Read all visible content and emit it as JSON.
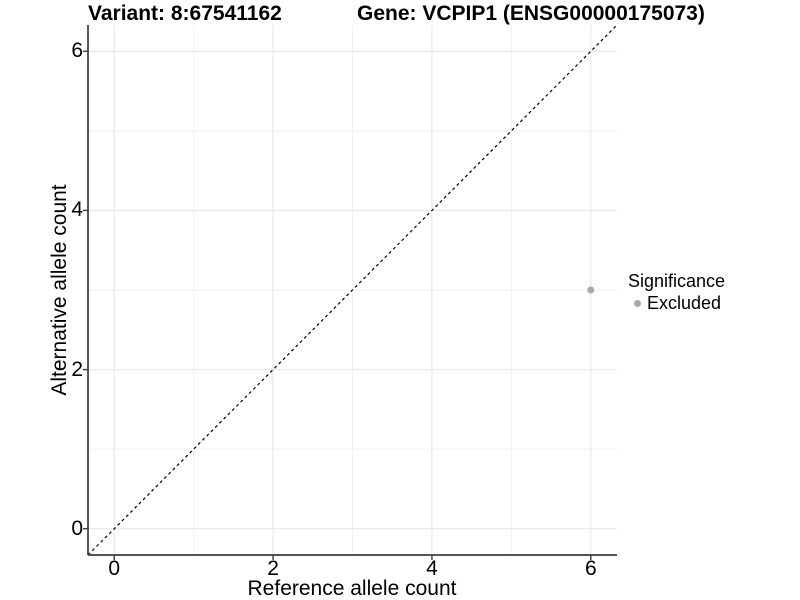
{
  "figure": {
    "background": "#ffffff"
  },
  "chart_data": {
    "type": "scatter",
    "title_left": "Variant: 8:67541162",
    "title_right": "Gene: VCPIP1 (ENSG00000175073)",
    "xlabel": "Reference allele count",
    "ylabel": "Alternative allele count",
    "xlim": [
      -0.33,
      6.33
    ],
    "ylim": [
      -0.33,
      6.33
    ],
    "x_ticks": [
      0,
      2,
      4,
      6
    ],
    "y_ticks": [
      0,
      2,
      4,
      6
    ],
    "x_minor_ticks": [
      1,
      3,
      5
    ],
    "y_minor_ticks": [
      1,
      3,
      5
    ],
    "grid": true,
    "legend": {
      "title": "Significance",
      "position": "right",
      "items": [
        {
          "label": "Excluded",
          "color": "#a8a8a8",
          "marker": "circle"
        }
      ]
    },
    "reference_line": {
      "type": "identity y=x",
      "style": "dashed",
      "color": "#000000"
    },
    "series": [
      {
        "name": "Excluded",
        "color": "#a8a8a8",
        "marker": "circle",
        "points": [
          {
            "x": 6,
            "y": 3
          }
        ]
      }
    ]
  },
  "colors": {
    "background": "#ffffff",
    "grid_major": "#e4e4e4",
    "grid_minor": "#f1f1f1",
    "axis_line": "#3d3d3d",
    "tick_mark": "#3d3d3d",
    "text": "#000000",
    "point_excluded": "#a8a8a8"
  }
}
